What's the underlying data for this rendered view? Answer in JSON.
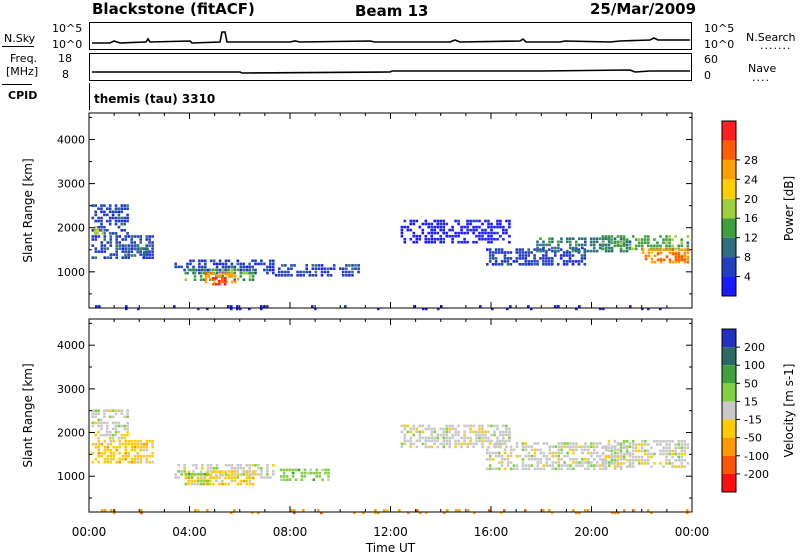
{
  "header": {
    "station": "Blackstone (fitACF)",
    "beam": "Beam 13",
    "date": "25/Mar/2009"
  },
  "top_strips": {
    "nsky_label": "N.Sky",
    "nsky_ticks": [
      "10^5",
      "10^0"
    ],
    "nsearch_label": "N.Search",
    "nsearch_ticks": [
      "10^5",
      "10^0"
    ],
    "freq_label": "Freq.",
    "freq_unit": "[MHz]",
    "freq_ticks": [
      "18",
      "8"
    ],
    "nave_label": "Nave",
    "nave_ticks": [
      "60",
      "0"
    ],
    "cpid_label": "CPID",
    "cpid_value": "themis (tau) 3310"
  },
  "colors": {
    "power": [
      "#1a1aff",
      "#1f3fbf",
      "#2f6f7f",
      "#3f9f3f",
      "#9fcf3f",
      "#ffd000",
      "#ff9f00",
      "#ff5f00",
      "#ff2020"
    ],
    "velocity": [
      "#2030c0",
      "#2a6a60",
      "#40a040",
      "#80d040",
      "#c8c8c8",
      "#ffcc00",
      "#ff9900",
      "#ff5500",
      "#ff1010"
    ]
  },
  "chart_data": [
    {
      "type": "heatmap",
      "title": "Power",
      "xlabel": "",
      "ylabel": "Slant Range [km]",
      "yticks": [
        "1000",
        "2000",
        "3000",
        "4000"
      ],
      "ylim": [
        180,
        4600
      ],
      "xlim": [
        0,
        24
      ],
      "colorbar_label": "Power [dB]",
      "colorbar_ticks": [
        "4",
        "8",
        "12",
        "16",
        "20",
        "24",
        "28"
      ],
      "regions": [
        {
          "t0": 0.1,
          "t1": 1.6,
          "r0": 1900,
          "r1": 2600,
          "level": 1
        },
        {
          "t0": 0.1,
          "t1": 2.6,
          "r0": 1350,
          "r1": 1900,
          "level": 1
        },
        {
          "t0": 0.2,
          "t1": 0.6,
          "r0": 1900,
          "r1": 2100,
          "level": 4
        },
        {
          "t0": 1.4,
          "t1": 2.4,
          "r0": 1400,
          "r1": 1700,
          "level": 2
        },
        {
          "t0": 3.4,
          "t1": 7.4,
          "r0": 1000,
          "r1": 1350,
          "level": 1
        },
        {
          "t0": 3.8,
          "t1": 6.6,
          "r0": 850,
          "r1": 1150,
          "level": 3
        },
        {
          "t0": 4.6,
          "t1": 6.0,
          "r0": 800,
          "r1": 1050,
          "level": 6
        },
        {
          "t0": 4.9,
          "t1": 5.6,
          "r0": 750,
          "r1": 950,
          "level": 8
        },
        {
          "t0": 7.4,
          "t1": 10.8,
          "r0": 950,
          "r1": 1250,
          "level": 1
        },
        {
          "t0": 12.4,
          "t1": 16.8,
          "r0": 1700,
          "r1": 2250,
          "level": 0
        },
        {
          "t0": 15.8,
          "t1": 19.8,
          "r0": 1200,
          "r1": 1600,
          "level": 1
        },
        {
          "t0": 17.8,
          "t1": 21.6,
          "r0": 1500,
          "r1": 1850,
          "level": 2
        },
        {
          "t0": 20.4,
          "t1": 23.9,
          "r0": 1550,
          "r1": 1900,
          "level": 3
        },
        {
          "t0": 22.0,
          "t1": 23.9,
          "r0": 1250,
          "r1": 1600,
          "level": 6
        },
        {
          "t0": 22.6,
          "t1": 23.9,
          "r0": 1300,
          "r1": 1500,
          "level": 7
        },
        {
          "t0": 0.0,
          "t1": 24.0,
          "r0": 190,
          "r1": 300,
          "level": 0
        }
      ]
    },
    {
      "type": "heatmap",
      "title": "Velocity",
      "xlabel": "Time UT",
      "ylabel": "Slant Range [km]",
      "yticks": [
        "1000",
        "2000",
        "3000",
        "4000"
      ],
      "ylim": [
        180,
        4600
      ],
      "xlim": [
        0,
        24
      ],
      "xticks": [
        "00:00",
        "04:00",
        "08:00",
        "12:00",
        "16:00",
        "20:00",
        "00:00"
      ],
      "colorbar_label": "Velocity [m s-1]",
      "colorbar_ticks": [
        "200",
        "100",
        "50",
        "15",
        "-15",
        "-50",
        "-100",
        "-200"
      ],
      "regions": [
        {
          "t0": 0.1,
          "t1": 1.6,
          "r0": 1900,
          "r1": 2600,
          "level": 4
        },
        {
          "t0": 0.1,
          "t1": 2.6,
          "r0": 1350,
          "r1": 1900,
          "level": 5
        },
        {
          "t0": 3.4,
          "t1": 7.4,
          "r0": 1000,
          "r1": 1350,
          "level": 4
        },
        {
          "t0": 3.8,
          "t1": 6.6,
          "r0": 850,
          "r1": 1200,
          "level": 5
        },
        {
          "t0": 3.8,
          "t1": 4.8,
          "r0": 850,
          "r1": 1150,
          "level": 3
        },
        {
          "t0": 7.6,
          "t1": 9.6,
          "r0": 950,
          "r1": 1250,
          "level": 3
        },
        {
          "t0": 12.4,
          "t1": 16.8,
          "r0": 1700,
          "r1": 2250,
          "level": 4
        },
        {
          "t0": 15.8,
          "t1": 21.6,
          "r0": 1200,
          "r1": 1850,
          "level": 4
        },
        {
          "t0": 20.4,
          "t1": 23.9,
          "r0": 1250,
          "r1": 1900,
          "level": 4
        },
        {
          "t0": 0.0,
          "t1": 24.0,
          "r0": 190,
          "r1": 300,
          "level": 6
        }
      ]
    }
  ]
}
